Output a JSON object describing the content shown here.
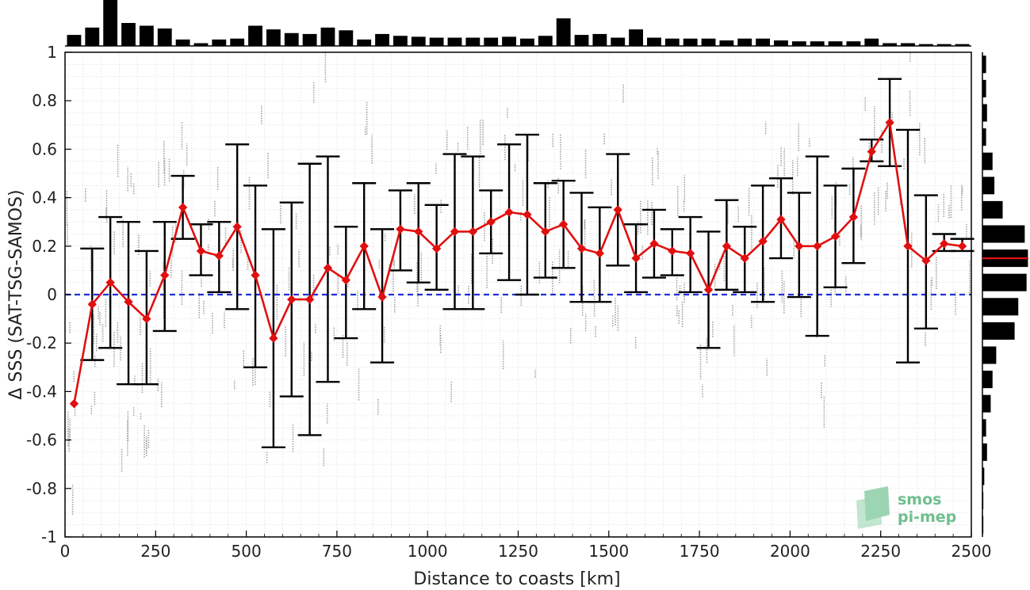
{
  "chart_data": {
    "type": "line",
    "title": "",
    "xlabel": "Distance to coasts [km]",
    "ylabel": "Δ SSS (SAT-TSG-SAMOS)",
    "xlim": [
      0,
      2500
    ],
    "ylim": [
      -1,
      1
    ],
    "xticks": [
      0,
      250,
      500,
      750,
      1000,
      1250,
      1500,
      1750,
      2000,
      2250,
      2500
    ],
    "yticks": [
      -1,
      -0.8,
      -0.6,
      -0.4,
      -0.2,
      0,
      0.2,
      0.4,
      0.6,
      0.8,
      1
    ],
    "xtick_labels": [
      "0",
      "250",
      "500",
      "750",
      "1000",
      "1250",
      "1500",
      "1750",
      "2000",
      "2250",
      "2500"
    ],
    "ytick_labels": [
      "-1",
      "-0.8",
      "-0.6",
      "-0.4",
      "-0.2",
      "0",
      "0.2",
      "0.4",
      "0.6",
      "0.8",
      "1"
    ],
    "grid": true,
    "reference_line": {
      "y": 0,
      "color": "#1f2fd6",
      "style": "dashed"
    },
    "series": [
      {
        "color": "#e01010",
        "x": [
          25,
          75,
          125,
          175,
          225,
          275,
          325,
          375,
          425,
          475,
          525,
          575,
          625,
          675,
          725,
          775,
          825,
          875,
          925,
          975,
          1025,
          1075,
          1125,
          1175,
          1225,
          1275,
          1325,
          1375,
          1425,
          1475,
          1525,
          1575,
          1625,
          1675,
          1725,
          1775,
          1825,
          1875,
          1925,
          1975,
          2025,
          2075,
          2125,
          2175,
          2225,
          2275,
          2325,
          2375,
          2425,
          2475
        ],
        "y": [
          -0.45,
          -0.04,
          0.05,
          -0.03,
          -0.1,
          0.08,
          0.36,
          0.18,
          0.16,
          0.28,
          0.08,
          -0.18,
          -0.02,
          -0.02,
          0.11,
          0.06,
          0.2,
          -0.01,
          0.27,
          0.26,
          0.19,
          0.26,
          0.26,
          0.3,
          0.34,
          0.33,
          0.26,
          0.29,
          0.19,
          0.17,
          0.35,
          0.15,
          0.21,
          0.18,
          0.17,
          0.02,
          0.2,
          0.15,
          0.22,
          0.31,
          0.2,
          0.2,
          0.24,
          0.32,
          0.59,
          0.71,
          0.2,
          0.14,
          0.21,
          0.2
        ],
        "err_low": [
          null,
          -0.27,
          -0.22,
          -0.37,
          -0.37,
          -0.15,
          0.23,
          0.08,
          0.01,
          -0.06,
          -0.3,
          -0.63,
          -0.42,
          -0.58,
          -0.36,
          -0.18,
          -0.06,
          -0.28,
          0.1,
          0.05,
          0.02,
          -0.06,
          -0.06,
          0.17,
          0.06,
          0.0,
          0.07,
          0.11,
          -0.03,
          -0.03,
          0.12,
          0.01,
          0.07,
          0.08,
          0.01,
          -0.22,
          0.02,
          0.01,
          -0.03,
          0.15,
          -0.01,
          -0.17,
          0.03,
          0.13,
          0.55,
          0.53,
          -0.28,
          -0.14,
          0.18,
          0.18
        ],
        "err_high": [
          null,
          0.19,
          0.32,
          0.3,
          0.18,
          0.3,
          0.49,
          0.29,
          0.3,
          0.62,
          0.45,
          0.27,
          0.38,
          0.54,
          0.57,
          0.28,
          0.46,
          0.27,
          0.43,
          0.46,
          0.37,
          0.58,
          0.57,
          0.43,
          0.62,
          0.66,
          0.46,
          0.47,
          0.42,
          0.36,
          0.58,
          0.29,
          0.35,
          0.27,
          0.32,
          0.26,
          0.39,
          0.28,
          0.45,
          0.48,
          0.42,
          0.57,
          0.45,
          0.52,
          0.64,
          0.89,
          0.68,
          0.41,
          0.25,
          0.23
        ]
      }
    ],
    "top_histogram": {
      "x": [
        25,
        75,
        125,
        175,
        225,
        275,
        325,
        375,
        425,
        475,
        525,
        575,
        625,
        675,
        725,
        775,
        825,
        875,
        925,
        975,
        1025,
        1075,
        1125,
        1175,
        1225,
        1275,
        1325,
        1375,
        1425,
        1475,
        1525,
        1575,
        1625,
        1675,
        1725,
        1775,
        1825,
        1875,
        1925,
        1975,
        2025,
        2075,
        2125,
        2175,
        2225,
        2275,
        2325,
        2375,
        2425,
        2475
      ],
      "counts": [
        0.24,
        0.4,
        1.0,
        0.5,
        0.44,
        0.38,
        0.14,
        0.06,
        0.14,
        0.16,
        0.44,
        0.36,
        0.28,
        0.26,
        0.4,
        0.34,
        0.14,
        0.26,
        0.22,
        0.2,
        0.18,
        0.18,
        0.18,
        0.18,
        0.2,
        0.16,
        0.22,
        0.6,
        0.24,
        0.26,
        0.18,
        0.36,
        0.18,
        0.16,
        0.16,
        0.16,
        0.12,
        0.16,
        0.16,
        0.12,
        0.1,
        0.1,
        0.1,
        0.1,
        0.16,
        0.06,
        0.06,
        0.04,
        0.04,
        0.04
      ]
    },
    "right_histogram": {
      "y": [
        0.95,
        0.85,
        0.75,
        0.65,
        0.55,
        0.45,
        0.35,
        0.25,
        0.15,
        0.05,
        -0.05,
        -0.15,
        -0.25,
        -0.35,
        -0.45,
        -0.55,
        -0.65,
        -0.75,
        -0.85,
        -0.95
      ],
      "counts": [
        0.08,
        0.08,
        0.1,
        0.08,
        0.22,
        0.26,
        0.44,
        0.92,
        0.99,
        0.96,
        0.78,
        0.7,
        0.3,
        0.22,
        0.18,
        0.08,
        0.1,
        0.04,
        0.02,
        0.02
      ],
      "mean_line": 0.15,
      "mean_line_color": "#e01010"
    }
  },
  "logo": {
    "line1": "smos",
    "line2": "pi-mep"
  }
}
